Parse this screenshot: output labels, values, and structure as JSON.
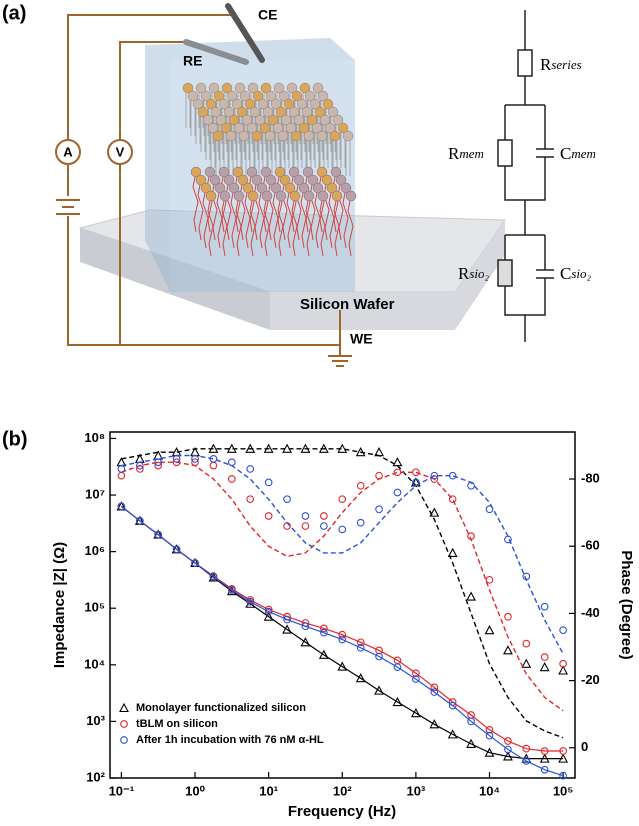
{
  "panel_a": {
    "label": "(a)",
    "electrodes": {
      "ce": "CE",
      "re": "RE",
      "we": "WE"
    },
    "meters": {
      "ammeter": "A",
      "voltmeter": "V"
    },
    "wafer": "Silicon Wafer",
    "circuit": {
      "r_series": {
        "base": "R",
        "sub": "series"
      },
      "r_mem": {
        "base": "R",
        "sub": "mem"
      },
      "c_mem": {
        "base": "C",
        "sub": "mem"
      },
      "r_sio2": {
        "base": "R",
        "sub": "sio₂"
      },
      "c_sio2": {
        "base": "C",
        "sub": "sio₂"
      }
    }
  },
  "panel_b": {
    "label": "(b)"
  },
  "chart_data": {
    "type": "line",
    "x_label": "Frequency (Hz)",
    "y_label": "Impedance |Z| (Ω)",
    "y2_label": "Phase (Degree)",
    "log_x": true,
    "log_y": true,
    "xlim": [
      0.07,
      145000
    ],
    "ylim": [
      100,
      130000000
    ],
    "y2lim": [
      9,
      -94
    ],
    "xticks": [
      {
        "value": 0.1,
        "label": "10⁻¹"
      },
      {
        "value": 1,
        "label": "10⁰"
      },
      {
        "value": 10,
        "label": "10¹"
      },
      {
        "value": 100,
        "label": "10²"
      },
      {
        "value": 1000,
        "label": "10³"
      },
      {
        "value": 10000,
        "label": "10⁴"
      },
      {
        "value": 100000,
        "label": "10⁵"
      }
    ],
    "yticks": [
      {
        "value": 100,
        "label": "10²"
      },
      {
        "value": 1000,
        "label": "10³"
      },
      {
        "value": 10000,
        "label": "10⁴"
      },
      {
        "value": 100000,
        "label": "10⁵"
      },
      {
        "value": 1000000,
        "label": "10⁶"
      },
      {
        "value": 10000000,
        "label": "10⁷"
      },
      {
        "value": 100000000,
        "label": "10⁸"
      }
    ],
    "y2ticks": [
      0,
      -20,
      -40,
      -60,
      -80
    ],
    "legend": "bottom-left",
    "x": [
      0.1,
      0.178,
      0.316,
      0.562,
      1,
      1.78,
      3.16,
      5.62,
      10,
      17.8,
      31.6,
      56.2,
      100,
      178,
      316,
      562,
      1000,
      1780,
      3160,
      5620,
      10000,
      17800,
      31600,
      56200,
      100000
    ],
    "series": [
      {
        "name": "Monolayer functionalized silicon",
        "color": "#000000",
        "marker": "triangle",
        "values": [
          6300000.0,
          3500000.0,
          2000000.0,
          1100000.0,
          630000.0,
          350000.0,
          200000.0,
          120000.0,
          71000.0,
          42000.0,
          25000.0,
          15000.0,
          9300.0,
          5800.0,
          3500.0,
          2200.0,
          1400.0,
          890,
          590,
          400,
          280,
          240,
          220,
          220,
          220
        ],
        "phase": [
          -85,
          -86,
          -87,
          -88,
          -88,
          -89,
          -89,
          -89,
          -89,
          -89,
          -89,
          -89,
          -89,
          -88,
          -88,
          -85,
          -79,
          -70,
          -58,
          -45,
          -35,
          -29,
          -25,
          -24,
          -23
        ],
        "phase_fit": [
          -86,
          -87,
          -88,
          -88,
          -89,
          -89,
          -89,
          -89,
          -89,
          -89,
          -89,
          -89,
          -89,
          -88,
          -87,
          -84,
          -78,
          -68,
          -55,
          -40,
          -25,
          -15,
          -8,
          -5,
          -3
        ]
      },
      {
        "name": "tBLM on silicon",
        "color": "#e3262a",
        "marker": "circle",
        "values": [
          6300000.0,
          3500000.0,
          2000000.0,
          1100000.0,
          630000.0,
          370000.0,
          220000.0,
          140000.0,
          95000.0,
          71000.0,
          55000.0,
          44000.0,
          34000.0,
          25000.0,
          18000.0,
          12000.0,
          7100.0,
          4000.0,
          2200.0,
          1300.0,
          710,
          450,
          330,
          300,
          300
        ],
        "phase": [
          -81,
          -83,
          -84,
          -85,
          -85,
          -84,
          -80,
          -74,
          -69,
          -66,
          -66,
          -69,
          -74,
          -78,
          -81,
          -82,
          -82,
          -80,
          -74,
          -63,
          -50,
          -39,
          -31,
          -27,
          -25
        ],
        "phase_fit": [
          -82,
          -84,
          -85,
          -85,
          -84,
          -80,
          -74,
          -66,
          -60,
          -57,
          -58,
          -63,
          -70,
          -76,
          -80,
          -82,
          -82,
          -80,
          -74,
          -62,
          -47,
          -33,
          -22,
          -15,
          -11
        ]
      },
      {
        "name": "After 1h incubation with 76 nM α-HL",
        "color": "#2a52d6",
        "marker": "circle",
        "values": [
          6300000.0,
          3500000.0,
          2000000.0,
          1100000.0,
          630000.0,
          360000.0,
          210000.0,
          130000.0,
          87000.0,
          63000.0,
          48000.0,
          37000.0,
          28000.0,
          20000.0,
          14000.0,
          9100.0,
          5600.0,
          3300.0,
          1900.0,
          1000.0,
          560,
          320,
          200,
          140,
          110
        ],
        "phase": [
          -83,
          -84,
          -85,
          -86,
          -86,
          -86,
          -85,
          -83,
          -79,
          -74,
          -69,
          -66,
          -65,
          -67,
          -71,
          -76,
          -79,
          -81,
          -81,
          -78,
          -71,
          -62,
          -51,
          -42,
          -35
        ],
        "phase_fit": [
          -84,
          -85,
          -86,
          -87,
          -87,
          -86,
          -84,
          -80,
          -74,
          -67,
          -61,
          -58,
          -58,
          -61,
          -67,
          -73,
          -78,
          -81,
          -81,
          -79,
          -73,
          -63,
          -50,
          -38,
          -28
        ]
      }
    ]
  }
}
